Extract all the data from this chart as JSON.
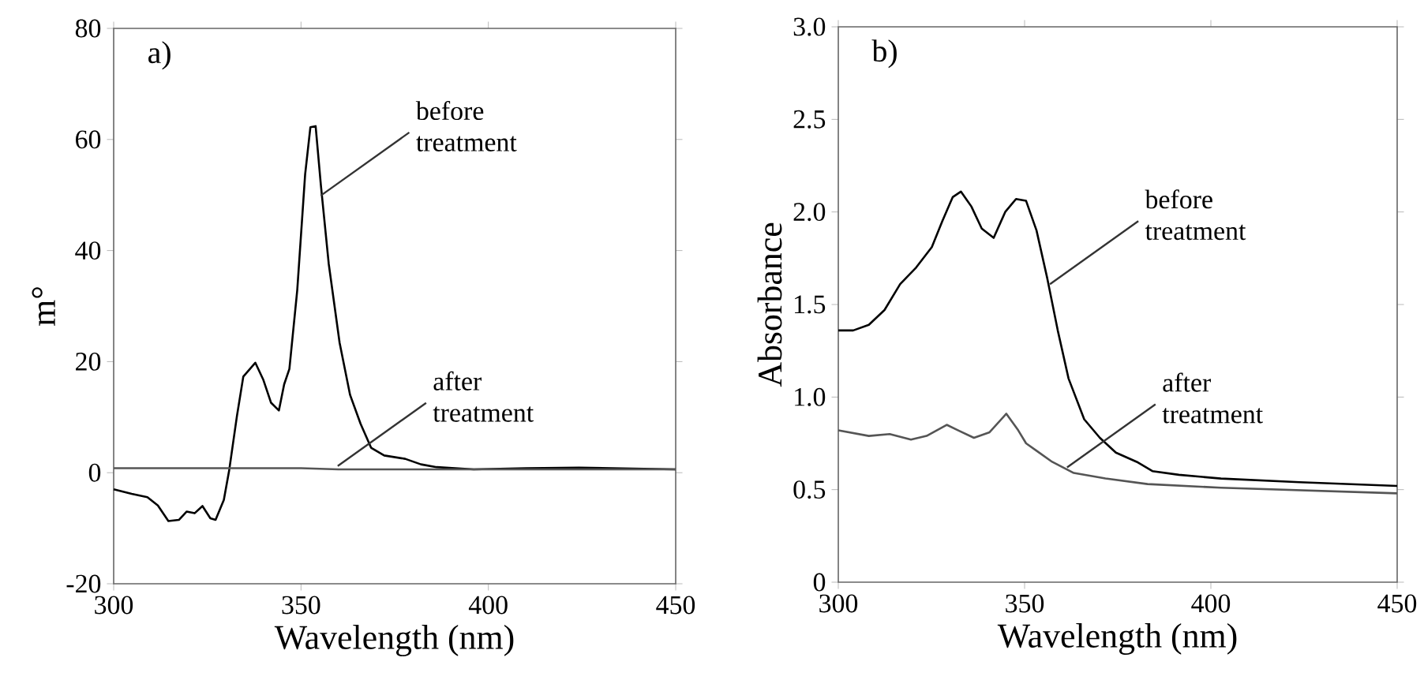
{
  "chart_data": [
    {
      "type": "line",
      "title": "a)",
      "xlabel": "Wavelength (nm)",
      "ylabel": "m°",
      "xlim": [
        300,
        450
      ],
      "xticks": [
        300,
        350,
        400,
        450
      ],
      "ylim": [
        -20,
        80
      ],
      "yticks": [
        -20,
        0,
        20,
        40,
        60,
        80
      ],
      "series": [
        {
          "color": "#000000",
          "x": [
            300,
            304.8,
            309,
            311.8,
            314.6,
            317.4,
            319.5,
            321.6,
            323.7,
            325.8,
            327.2,
            329.4,
            330.8,
            332.9,
            334.6,
            337.8,
            339.9,
            342,
            344.1,
            345.5,
            346.9,
            349,
            351.1,
            352.5,
            353.9,
            355.3,
            357.4,
            360.3,
            363.1,
            365.9,
            368.7,
            372.2,
            377.8,
            382,
            386.2,
            396.1,
            410.1,
            424.2,
            450
          ],
          "values": [
            -3.0,
            -3.8,
            -4.4,
            -5.9,
            -8.7,
            -8.5,
            -7.0,
            -7.3,
            -6.0,
            -8.2,
            -8.5,
            -4.9,
            0.3,
            10.2,
            17.3,
            19.8,
            16.8,
            12.6,
            11.2,
            15.9,
            18.7,
            32.9,
            53.7,
            62.2,
            62.4,
            51.8,
            37.6,
            23.4,
            14,
            8.8,
            4.5,
            3.1,
            2.5,
            1.5,
            1.0,
            0.6,
            0.8,
            0.9,
            0.6
          ]
        },
        {
          "color": "#555555",
          "x": [
            300,
            350,
            360,
            450
          ],
          "values": [
            0.8,
            0.8,
            0.6,
            0.6
          ]
        }
      ],
      "annotations": [
        {
          "text": "before treatment",
          "x": 355.3,
          "y": 49.9
        },
        {
          "text": "after treatment",
          "x": 359.8,
          "y": 1.2
        }
      ]
    },
    {
      "type": "line",
      "title": "b)",
      "xlabel": "Wavelength (nm)",
      "ylabel": "Absorbance",
      "xlim": [
        300,
        450
      ],
      "xticks": [
        300,
        350,
        400,
        450
      ],
      "ylim": [
        0,
        3
      ],
      "yticks": [
        0,
        0.5,
        {
          "value": 1,
          "label": "1.0"
        },
        1.5,
        {
          "value": 2,
          "label": "2.0"
        },
        2.5,
        {
          "value": 3,
          "label": "3.0"
        }
      ],
      "series": [
        {
          "color": "#000000",
          "x": [
            300,
            304,
            308.2,
            312.4,
            316.6,
            320.9,
            325.1,
            327.9,
            330.7,
            332.9,
            335.7,
            338.5,
            341.7,
            344.8,
            347.7,
            350.4,
            353.2,
            356.1,
            358.9,
            361.8,
            366,
            370.2,
            374.5,
            380.1,
            384.3,
            391.4,
            402.7,
            423.8,
            450
          ],
          "values": [
            1.36,
            1.36,
            1.39,
            1.47,
            1.61,
            1.7,
            1.81,
            1.95,
            2.08,
            2.11,
            2.03,
            1.91,
            1.86,
            2.0,
            2.07,
            2.06,
            1.9,
            1.64,
            1.36,
            1.1,
            0.88,
            0.78,
            0.7,
            0.65,
            0.6,
            0.58,
            0.56,
            0.54,
            0.52
          ]
        },
        {
          "color": "#555555",
          "x": [
            300,
            308.2,
            313.8,
            319.5,
            323.7,
            329.1,
            332.2,
            336.4,
            340.6,
            345.1,
            348.3,
            350.4,
            353.2,
            357.4,
            363.2,
            371.7,
            383,
            402.7,
            450
          ],
          "values": [
            0.82,
            0.79,
            0.8,
            0.77,
            0.79,
            0.85,
            0.82,
            0.78,
            0.81,
            0.91,
            0.82,
            0.75,
            0.71,
            0.65,
            0.59,
            0.56,
            0.53,
            0.51,
            0.48
          ]
        }
      ],
      "annotations": [
        {
          "text": "before treatment",
          "x": 356.8,
          "y": 1.61
        },
        {
          "text": "after treatment",
          "x": 361.4,
          "y": 0.62
        }
      ]
    }
  ]
}
